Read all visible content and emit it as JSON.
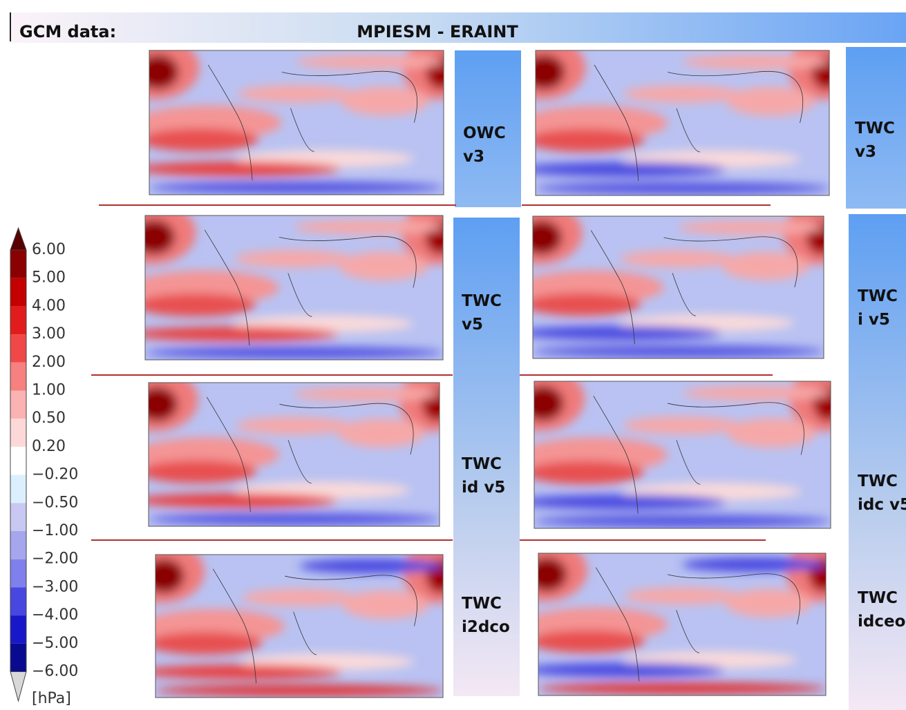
{
  "header": {
    "title": "GCM data:",
    "subtitle": "MPIESM - ERAINT"
  },
  "panels": [
    {
      "label": [
        "OWC",
        "v3"
      ]
    },
    {
      "label": [
        "TWC",
        "v3"
      ]
    },
    {
      "label": [
        "TWC",
        "v5"
      ]
    },
    {
      "label": [
        "TWC",
        "i v5"
      ]
    },
    {
      "label": [
        "TWC",
        "id v5"
      ]
    },
    {
      "label": [
        "TWC",
        "idc v5"
      ]
    },
    {
      "label": [
        "TWC",
        "i2dco"
      ]
    },
    {
      "label": [
        "TWC",
        "idceo"
      ]
    }
  ],
  "colorbar": {
    "labels": [
      "6.00",
      "5.00",
      "4.00",
      "3.00",
      "2.00",
      "1.00",
      "0.50",
      "0.20",
      "−0.20",
      "−0.50",
      "−1.00",
      "−2.00",
      "−3.00",
      "−4.00",
      "−5.00",
      "−6.00"
    ],
    "over_color": "#5a0000",
    "colors": [
      "#8b0000",
      "#c40000",
      "#e21c1c",
      "#f04848",
      "#f78080",
      "#fbb2b2",
      "#fdd8d8",
      "#ffffff",
      "#dcefff",
      "#c8c8f2",
      "#a6a6ee",
      "#8080ec",
      "#4848e0",
      "#1818c8",
      "#0a0a90"
    ],
    "under_color": "#d8d8d8",
    "unit": "[hPa]"
  }
}
